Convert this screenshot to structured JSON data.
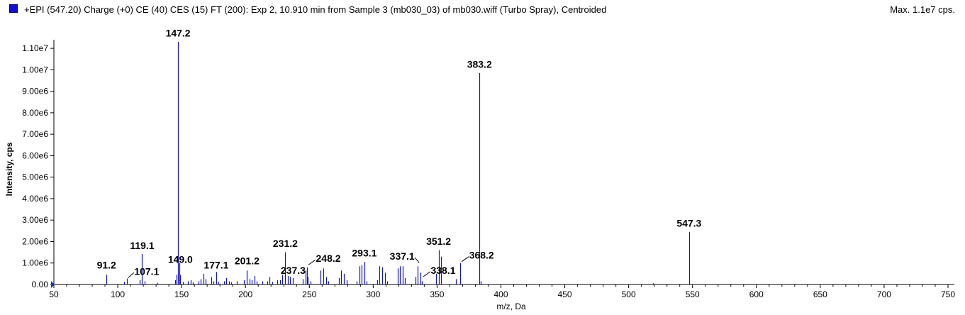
{
  "header": {
    "title": "+EPI (547.20) Charge (+0) CE (40) CES (15) FT (200): Exp 2, 10.910 min from Sample 3 (mb030_03) of mb030.wiff (Turbo Spray), Centroided",
    "max_label": "Max. 1.1e7 cps.",
    "series_color": "#1111cc"
  },
  "chart_data": {
    "type": "bar",
    "xlabel": "m/z, Da",
    "ylabel": "Intensity, cps",
    "xlim": [
      50,
      755
    ],
    "ylim": [
      0,
      11400000
    ],
    "x_ticks": [
      50,
      100,
      150,
      200,
      250,
      300,
      350,
      400,
      450,
      500,
      550,
      600,
      650,
      700,
      750
    ],
    "y_ticks": [
      {
        "value": 0,
        "label": "0.00"
      },
      {
        "value": 1000000,
        "label": "1.00e6"
      },
      {
        "value": 2000000,
        "label": "2.00e6"
      },
      {
        "value": 3000000,
        "label": "3.00e6"
      },
      {
        "value": 4000000,
        "label": "4.00e6"
      },
      {
        "value": 5000000,
        "label": "5.00e6"
      },
      {
        "value": 6000000,
        "label": "6.00e6"
      },
      {
        "value": 7000000,
        "label": "7.00e6"
      },
      {
        "value": 8000000,
        "label": "8.00e6"
      },
      {
        "value": 9000000,
        "label": "9.00e6"
      },
      {
        "value": 10000000,
        "label": "1.00e7"
      },
      {
        "value": 11000000,
        "label": "1.10e7"
      }
    ],
    "peaks": [
      {
        "mz": 91.2,
        "intensity": 450000
      },
      {
        "mz": 105.0,
        "intensity": 120000
      },
      {
        "mz": 107.1,
        "intensity": 280000
      },
      {
        "mz": 117.0,
        "intensity": 200000
      },
      {
        "mz": 119.1,
        "intensity": 1420000
      },
      {
        "mz": 121.0,
        "intensity": 150000
      },
      {
        "mz": 131.0,
        "intensity": 80000
      },
      {
        "mz": 145.0,
        "intensity": 200000
      },
      {
        "mz": 146.0,
        "intensity": 450000
      },
      {
        "mz": 147.2,
        "intensity": 11300000
      },
      {
        "mz": 148.1,
        "intensity": 1000000
      },
      {
        "mz": 149.0,
        "intensity": 450000
      },
      {
        "mz": 151.0,
        "intensity": 120000
      },
      {
        "mz": 155.0,
        "intensity": 150000
      },
      {
        "mz": 157.0,
        "intensity": 200000
      },
      {
        "mz": 159.0,
        "intensity": 100000
      },
      {
        "mz": 163.0,
        "intensity": 150000
      },
      {
        "mz": 165.0,
        "intensity": 250000
      },
      {
        "mz": 167.0,
        "intensity": 500000
      },
      {
        "mz": 169.0,
        "intensity": 250000
      },
      {
        "mz": 173.0,
        "intensity": 350000
      },
      {
        "mz": 175.0,
        "intensity": 150000
      },
      {
        "mz": 177.1,
        "intensity": 580000
      },
      {
        "mz": 179.0,
        "intensity": 120000
      },
      {
        "mz": 183.0,
        "intensity": 150000
      },
      {
        "mz": 185.0,
        "intensity": 300000
      },
      {
        "mz": 187.0,
        "intensity": 150000
      },
      {
        "mz": 189.0,
        "intensity": 100000
      },
      {
        "mz": 193.0,
        "intensity": 150000
      },
      {
        "mz": 199.0,
        "intensity": 200000
      },
      {
        "mz": 201.2,
        "intensity": 650000
      },
      {
        "mz": 203.0,
        "intensity": 250000
      },
      {
        "mz": 205.0,
        "intensity": 200000
      },
      {
        "mz": 207.0,
        "intensity": 400000
      },
      {
        "mz": 209.0,
        "intensity": 150000
      },
      {
        "mz": 213.0,
        "intensity": 150000
      },
      {
        "mz": 217.0,
        "intensity": 150000
      },
      {
        "mz": 219.0,
        "intensity": 350000
      },
      {
        "mz": 221.0,
        "intensity": 120000
      },
      {
        "mz": 225.0,
        "intensity": 200000
      },
      {
        "mz": 227.0,
        "intensity": 200000
      },
      {
        "mz": 229.0,
        "intensity": 450000
      },
      {
        "mz": 231.2,
        "intensity": 1500000
      },
      {
        "mz": 233.0,
        "intensity": 400000
      },
      {
        "mz": 235.0,
        "intensity": 350000
      },
      {
        "mz": 237.3,
        "intensity": 300000
      },
      {
        "mz": 245.0,
        "intensity": 250000
      },
      {
        "mz": 247.0,
        "intensity": 650000
      },
      {
        "mz": 248.2,
        "intensity": 800000
      },
      {
        "mz": 249.0,
        "intensity": 350000
      },
      {
        "mz": 251.0,
        "intensity": 150000
      },
      {
        "mz": 259.0,
        "intensity": 650000
      },
      {
        "mz": 261.0,
        "intensity": 750000
      },
      {
        "mz": 263.0,
        "intensity": 350000
      },
      {
        "mz": 265.0,
        "intensity": 150000
      },
      {
        "mz": 273.0,
        "intensity": 300000
      },
      {
        "mz": 275.0,
        "intensity": 650000
      },
      {
        "mz": 277.0,
        "intensity": 500000
      },
      {
        "mz": 279.0,
        "intensity": 200000
      },
      {
        "mz": 287.0,
        "intensity": 150000
      },
      {
        "mz": 289.0,
        "intensity": 850000
      },
      {
        "mz": 291.0,
        "intensity": 900000
      },
      {
        "mz": 293.1,
        "intensity": 1050000
      },
      {
        "mz": 295.0,
        "intensity": 150000
      },
      {
        "mz": 303.0,
        "intensity": 200000
      },
      {
        "mz": 305.0,
        "intensity": 850000
      },
      {
        "mz": 307.0,
        "intensity": 800000
      },
      {
        "mz": 309.0,
        "intensity": 550000
      },
      {
        "mz": 311.0,
        "intensity": 150000
      },
      {
        "mz": 319.0,
        "intensity": 750000
      },
      {
        "mz": 321.0,
        "intensity": 850000
      },
      {
        "mz": 323.0,
        "intensity": 850000
      },
      {
        "mz": 325.0,
        "intensity": 300000
      },
      {
        "mz": 333.0,
        "intensity": 350000
      },
      {
        "mz": 335.0,
        "intensity": 850000
      },
      {
        "mz": 337.1,
        "intensity": 550000
      },
      {
        "mz": 338.1,
        "intensity": 150000
      },
      {
        "mz": 349.0,
        "intensity": 500000
      },
      {
        "mz": 351.2,
        "intensity": 1600000
      },
      {
        "mz": 353.0,
        "intensity": 1300000
      },
      {
        "mz": 365.0,
        "intensity": 250000
      },
      {
        "mz": 368.2,
        "intensity": 1000000
      },
      {
        "mz": 383.2,
        "intensity": 9850000
      },
      {
        "mz": 384.2,
        "intensity": 150000
      },
      {
        "mz": 519.0,
        "intensity": 60000
      },
      {
        "mz": 547.3,
        "intensity": 2450000
      }
    ],
    "annotations": [
      {
        "text": "91.2",
        "mz": 91.2,
        "y": 750000
      },
      {
        "text": "107.1",
        "mz": 107.1,
        "y": 450000,
        "dx": 28,
        "leader": true
      },
      {
        "text": "119.1",
        "mz": 119.1,
        "y": 1650000
      },
      {
        "text": "147.2",
        "mz": 147.2,
        "y": 11550000
      },
      {
        "text": "149.0",
        "mz": 149.0,
        "y": 1000000
      },
      {
        "text": "177.1",
        "mz": 177.1,
        "y": 750000
      },
      {
        "text": "201.2",
        "mz": 201.2,
        "y": 950000
      },
      {
        "text": "231.2",
        "mz": 231.2,
        "y": 1750000
      },
      {
        "text": "237.3",
        "mz": 237.3,
        "y": 500000
      },
      {
        "text": "248.2",
        "mz": 248.2,
        "y": 1050000,
        "dx": 30,
        "leader": true
      },
      {
        "text": "293.1",
        "mz": 293.1,
        "y": 1300000
      },
      {
        "text": "337.1",
        "mz": 337.1,
        "y": 1150000,
        "dx": -26,
        "leader": true
      },
      {
        "text": "338.1",
        "mz": 338.1,
        "y": 500000,
        "dx": 30,
        "leader": true
      },
      {
        "text": "351.2",
        "mz": 351.2,
        "y": 1850000
      },
      {
        "text": "368.2",
        "mz": 368.2,
        "y": 1200000,
        "dx": 30,
        "leader": true
      },
      {
        "text": "383.2",
        "mz": 383.2,
        "y": 10100000
      },
      {
        "text": "547.3",
        "mz": 547.3,
        "y": 2700000
      }
    ]
  }
}
